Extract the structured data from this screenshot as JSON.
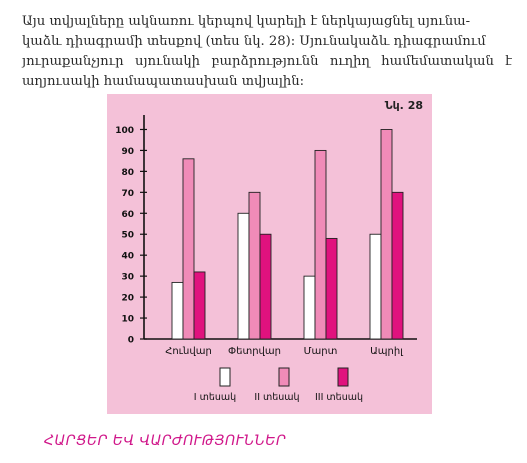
{
  "paragraph": {
    "lines": [
      "Այս տվյալները ակնառու կերպով կարելի է ներկայացնել սյունա-",
      "կաձև դիագրամի տեսքով (տես նկ. 28): Սյունակաձև դիագրամում",
      "յուրաքանչյուր սյունակի բարձրությունն ուղիղ համեմատական է",
      "աղյուսակի համապատասխան տվյալին:"
    ]
  },
  "figure_label": "Նկ. 28",
  "chart_data": {
    "type": "bar",
    "categories": [
      "Հունվար",
      "Փետրվար",
      "Մարտ",
      "Ապրիլ"
    ],
    "series": [
      {
        "name": "I տեսակ",
        "values": [
          27,
          60,
          30,
          50
        ],
        "color": "#ffffff"
      },
      {
        "name": "II տեսակ",
        "values": [
          86,
          70,
          90,
          100
        ],
        "color": "#f08bb8"
      },
      {
        "name": "III տեսակ",
        "values": [
          32,
          50,
          48,
          70
        ],
        "color": "#e0127e"
      }
    ],
    "yticks": [
      0,
      10,
      20,
      30,
      40,
      50,
      60,
      70,
      80,
      90,
      100
    ],
    "ylim": [
      0,
      105
    ],
    "legend_position": "bottom",
    "grid": false
  },
  "section_heading": "ՀԱՐՑԵՐ ԵՎ ՎԱՐԺՈՒԹՅՈՒՆՆԵՐ"
}
